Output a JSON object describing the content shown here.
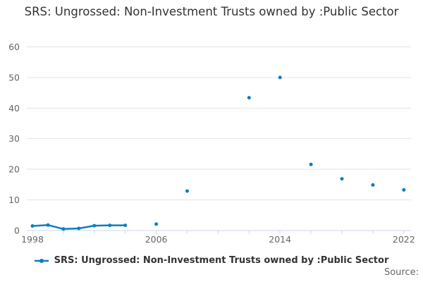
{
  "header": {
    "title": "SRS: Ungrossed: Non-Investment Trusts owned by :Public Sector"
  },
  "legend": {
    "label": "SRS: Ungrossed: Non-Investment Trusts owned by :Public Sector"
  },
  "footer": {
    "source_label": "Source:"
  },
  "chart_data": {
    "type": "line",
    "title": "SRS: Ungrossed: Non-Investment Trusts owned by :Public Sector",
    "series": [
      {
        "name": "SRS: Ungrossed: Non-Investment Trusts owned by :Public Sector",
        "color": "#0e7dc2",
        "points": [
          [
            1998,
            1.5
          ],
          [
            1999,
            1.8
          ],
          [
            2000,
            0.5
          ],
          [
            2001,
            0.7
          ],
          [
            2002,
            1.6
          ],
          [
            2003,
            1.7
          ],
          [
            2004,
            1.7
          ],
          [
            2006,
            2.1
          ],
          [
            2008,
            12.9
          ],
          [
            2012,
            43.4
          ],
          [
            2014,
            50
          ],
          [
            2016,
            21.6
          ],
          [
            2018,
            16.9
          ],
          [
            2020,
            14.9
          ],
          [
            2022,
            13.3
          ]
        ]
      }
    ],
    "xlabel": "",
    "ylabel": "",
    "xlim": [
      1997.6,
      2022.5
    ],
    "ylim": [
      0,
      60
    ],
    "y_ticks": [
      0,
      10,
      20,
      30,
      40,
      50,
      60
    ],
    "x_ticks": [
      1998,
      2000,
      2002,
      2004,
      2006,
      2008,
      2010,
      2012,
      2014,
      2016,
      2018,
      2020,
      2022
    ],
    "x_tick_labels": [
      1998,
      2006,
      2014,
      2022
    ],
    "grid": true,
    "legend_position": "bottom",
    "colors": {
      "series": "#0e7dc2",
      "gridline": "#e6e6e6",
      "axis": "#ccd6eb",
      "tick_label": "#666666",
      "title_text": "#333333"
    }
  }
}
